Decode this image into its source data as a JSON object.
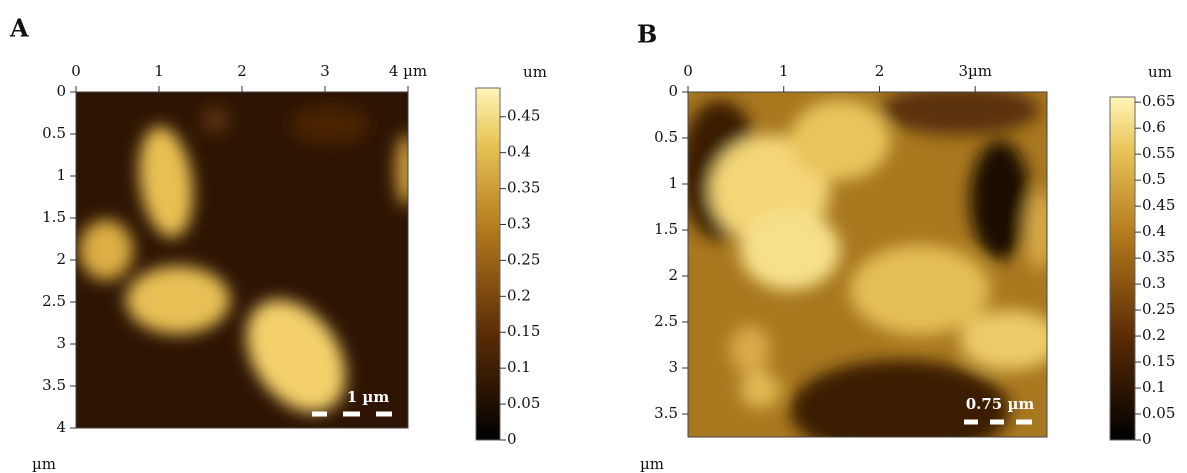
{
  "panels": [
    {
      "label": "A",
      "axis_unit": "µm",
      "xlim": [
        0,
        4
      ],
      "xticks": [
        0,
        1,
        2,
        3,
        {
          "value": 4,
          "label": "4 µm"
        }
      ],
      "ylim": [
        0,
        4
      ],
      "yticks": [
        0,
        0.5,
        1,
        1.5,
        2,
        2.5,
        3,
        3.5,
        4
      ],
      "colorbar": {
        "unit": "um",
        "lim": [
          0,
          0.49
        ],
        "ticks": [
          0,
          0.05,
          0.1,
          0.15,
          0.2,
          0.25,
          0.3,
          0.35,
          0.4,
          0.45
        ]
      },
      "scale_bar": "1 µm"
    },
    {
      "label": "B",
      "axis_unit": "µm",
      "xlim": [
        0,
        3.75
      ],
      "xticks": [
        0,
        1,
        2,
        {
          "value": 3,
          "label": "3µm"
        }
      ],
      "ylim": [
        0,
        3.75
      ],
      "yticks": [
        0,
        0.5,
        1,
        1.5,
        2,
        2.5,
        3,
        3.5
      ],
      "colorbar": {
        "unit": "um",
        "lim": [
          0,
          0.66
        ],
        "ticks": [
          0,
          0.05,
          0.1,
          0.15,
          0.2,
          0.25,
          0.3,
          0.35,
          0.4,
          0.45,
          0.5,
          0.55,
          0.6,
          0.65
        ]
      },
      "scale_bar": "0.75 µm"
    }
  ]
}
